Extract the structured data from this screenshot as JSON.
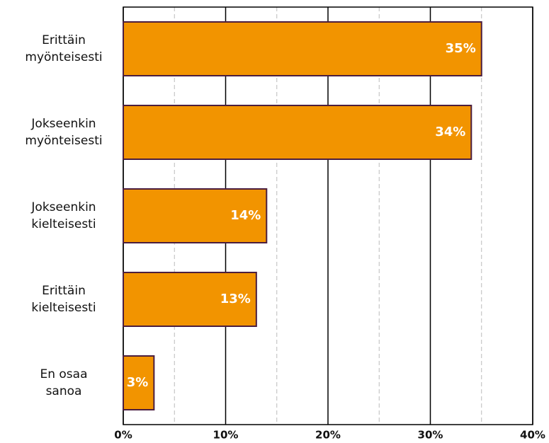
{
  "chart_data": {
    "type": "bar",
    "orientation": "horizontal",
    "categories": [
      "Erittäin\nmyönteisesti",
      "Jokseenkin\nmyönteisesti",
      "Jokseenkin\nkielteisesti",
      "Erittäin\nkielteisesti",
      "En osaa\nsanoa"
    ],
    "values": [
      35,
      34,
      14,
      13,
      3
    ],
    "value_labels": [
      "35%",
      "34%",
      "14%",
      "13%",
      "3%"
    ],
    "color": "#f29400",
    "edge_color": "#4b1e3f",
    "xlim": [
      0,
      40
    ],
    "xticks": [
      {
        "value": 0,
        "label": "0%"
      },
      {
        "value": 10,
        "label": "10%"
      },
      {
        "value": 20,
        "label": "20%"
      },
      {
        "value": 30,
        "label": "30%"
      },
      {
        "value": 40,
        "label": "40%"
      }
    ],
    "x_minor_ticks": [
      5,
      15,
      25,
      35
    ],
    "grid": true
  }
}
